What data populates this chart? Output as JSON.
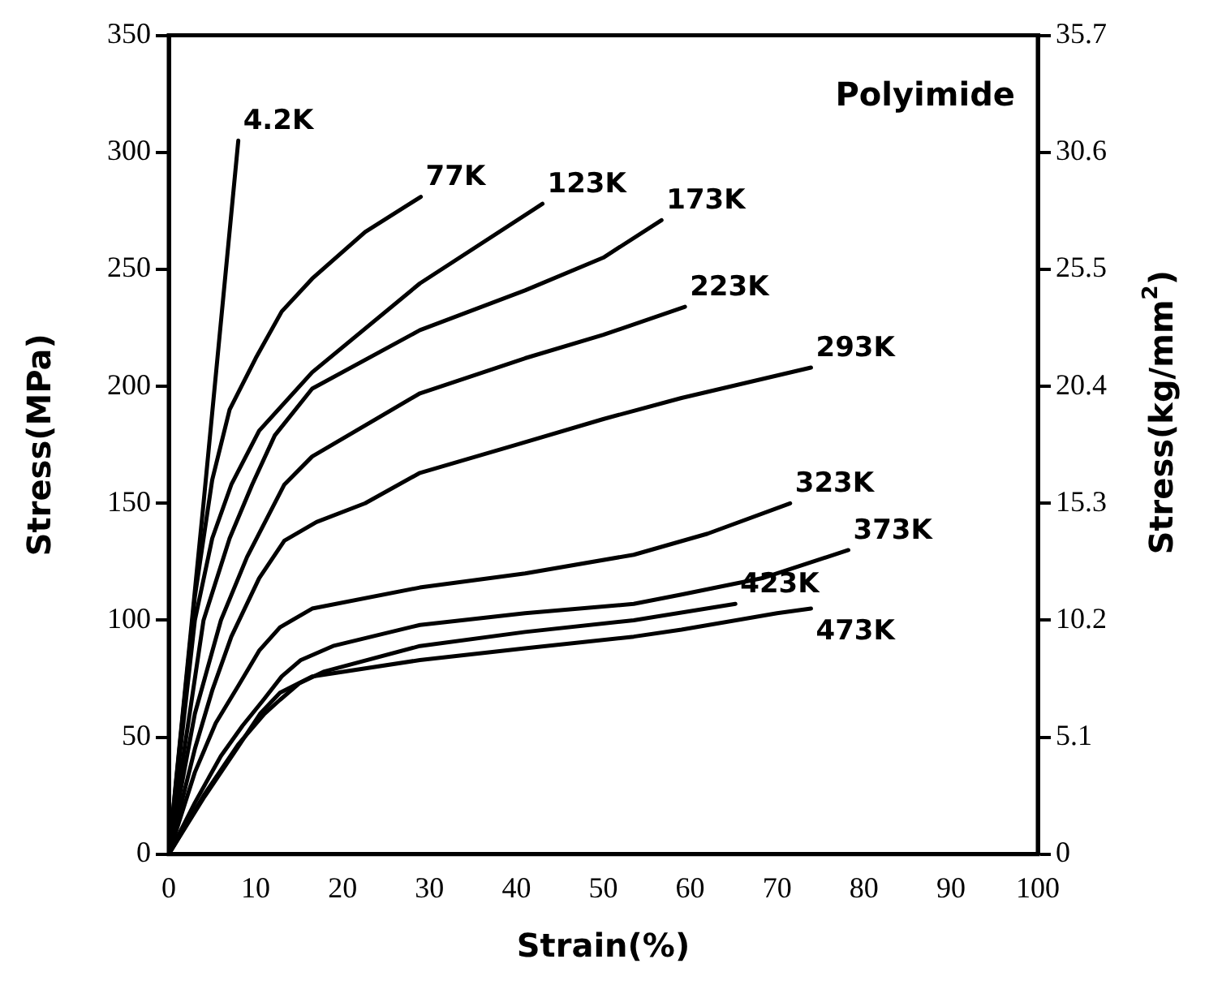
{
  "chart_data": {
    "type": "line",
    "xlabel": "Strain(%)",
    "ylabel": "Stress(MPa)",
    "y2label": "Stress(kg/mm$^{2}$)",
    "annotations": [
      "Polyimide"
    ],
    "xlim": [
      0,
      100
    ],
    "xticks": [
      0,
      10,
      20,
      30,
      40,
      50,
      60,
      70,
      80,
      90,
      100
    ],
    "ylim": [
      0,
      350
    ],
    "yticks": [
      0,
      50,
      100,
      150,
      200,
      250,
      300,
      350
    ],
    "y2lim": [
      0,
      35.7
    ],
    "y2ticks": [
      0,
      5.1,
      10.2,
      15.3,
      20.4,
      25.5,
      30.6,
      35.7
    ],
    "grid": false,
    "legend": false,
    "marker": "none",
    "line_style": "solid",
    "series": [
      {
        "name": "4.2K",
        "color": "#000000",
        "x": [
          0,
          4,
          8
        ],
        "values": [
          0,
          150,
          305
        ]
      },
      {
        "name": "77K",
        "color": "#000000",
        "x": [
          0,
          3,
          5,
          7,
          10,
          13,
          16.5,
          22.6,
          29
        ],
        "values": [
          0,
          110,
          160,
          190,
          212,
          232,
          246,
          266,
          281
        ]
      },
      {
        "name": "123K",
        "color": "#000000",
        "x": [
          0,
          3,
          5,
          7.2,
          10.4,
          16.5,
          28.9,
          43
        ],
        "values": [
          0,
          100,
          135,
          158,
          181,
          206,
          244,
          278
        ]
      },
      {
        "name": "173K",
        "color": "#000000",
        "x": [
          0,
          4,
          7,
          9.6,
          12.2,
          16.5,
          28.9,
          41,
          50,
          56.7
        ],
        "values": [
          0,
          100,
          135,
          158,
          179,
          199,
          224,
          241,
          255,
          271
        ]
      },
      {
        "name": "223K",
        "color": "#000000",
        "x": [
          0,
          3,
          6,
          9,
          13.3,
          16.5,
          28.9,
          41,
          50,
          59.4
        ],
        "values": [
          0,
          60,
          100,
          127,
          158,
          170,
          197,
          212,
          222,
          234
        ]
      },
      {
        "name": "293K",
        "color": "#000000",
        "x": [
          0,
          3,
          5,
          7.2,
          10.4,
          13.3,
          17,
          22.6,
          28.9,
          40,
          50,
          59,
          73.9
        ],
        "values": [
          0,
          45,
          70,
          93,
          118,
          134,
          142,
          150,
          163,
          175,
          186,
          195,
          208
        ]
      },
      {
        "name": "323K",
        "color": "#000000",
        "x": [
          0,
          3,
          5.4,
          8,
          10.4,
          12.8,
          16.5,
          28.9,
          41,
          53.5,
          62,
          71.5
        ],
        "values": [
          0,
          35,
          56,
          72,
          87,
          97,
          105,
          114,
          120,
          128,
          137,
          150
        ]
      },
      {
        "name": "373K",
        "color": "#000000",
        "x": [
          0,
          3,
          6,
          8.5,
          10.9,
          13,
          15.2,
          18.9,
          28.9,
          41,
          53.5,
          59,
          68.3,
          78.2
        ],
        "values": [
          0,
          22,
          42,
          55,
          66,
          76,
          83,
          89,
          98,
          103,
          107,
          111,
          118,
          130
        ]
      },
      {
        "name": "423K",
        "color": "#000000",
        "x": [
          0,
          4,
          8,
          11,
          12.8,
          15,
          17.8,
          28.9,
          41,
          53.5,
          65.2
        ],
        "values": [
          0,
          25,
          47,
          60,
          66,
          73,
          78,
          89,
          95,
          100,
          107
        ]
      },
      {
        "name": "473K",
        "color": "#000000",
        "x": [
          0,
          4,
          8,
          10.5,
          12.8,
          16.5,
          28.9,
          41,
          53.5,
          59,
          70,
          73.9
        ],
        "values": [
          0,
          24,
          46,
          60,
          69,
          76,
          83,
          88,
          93,
          96,
          103,
          105
        ]
      }
    ]
  }
}
